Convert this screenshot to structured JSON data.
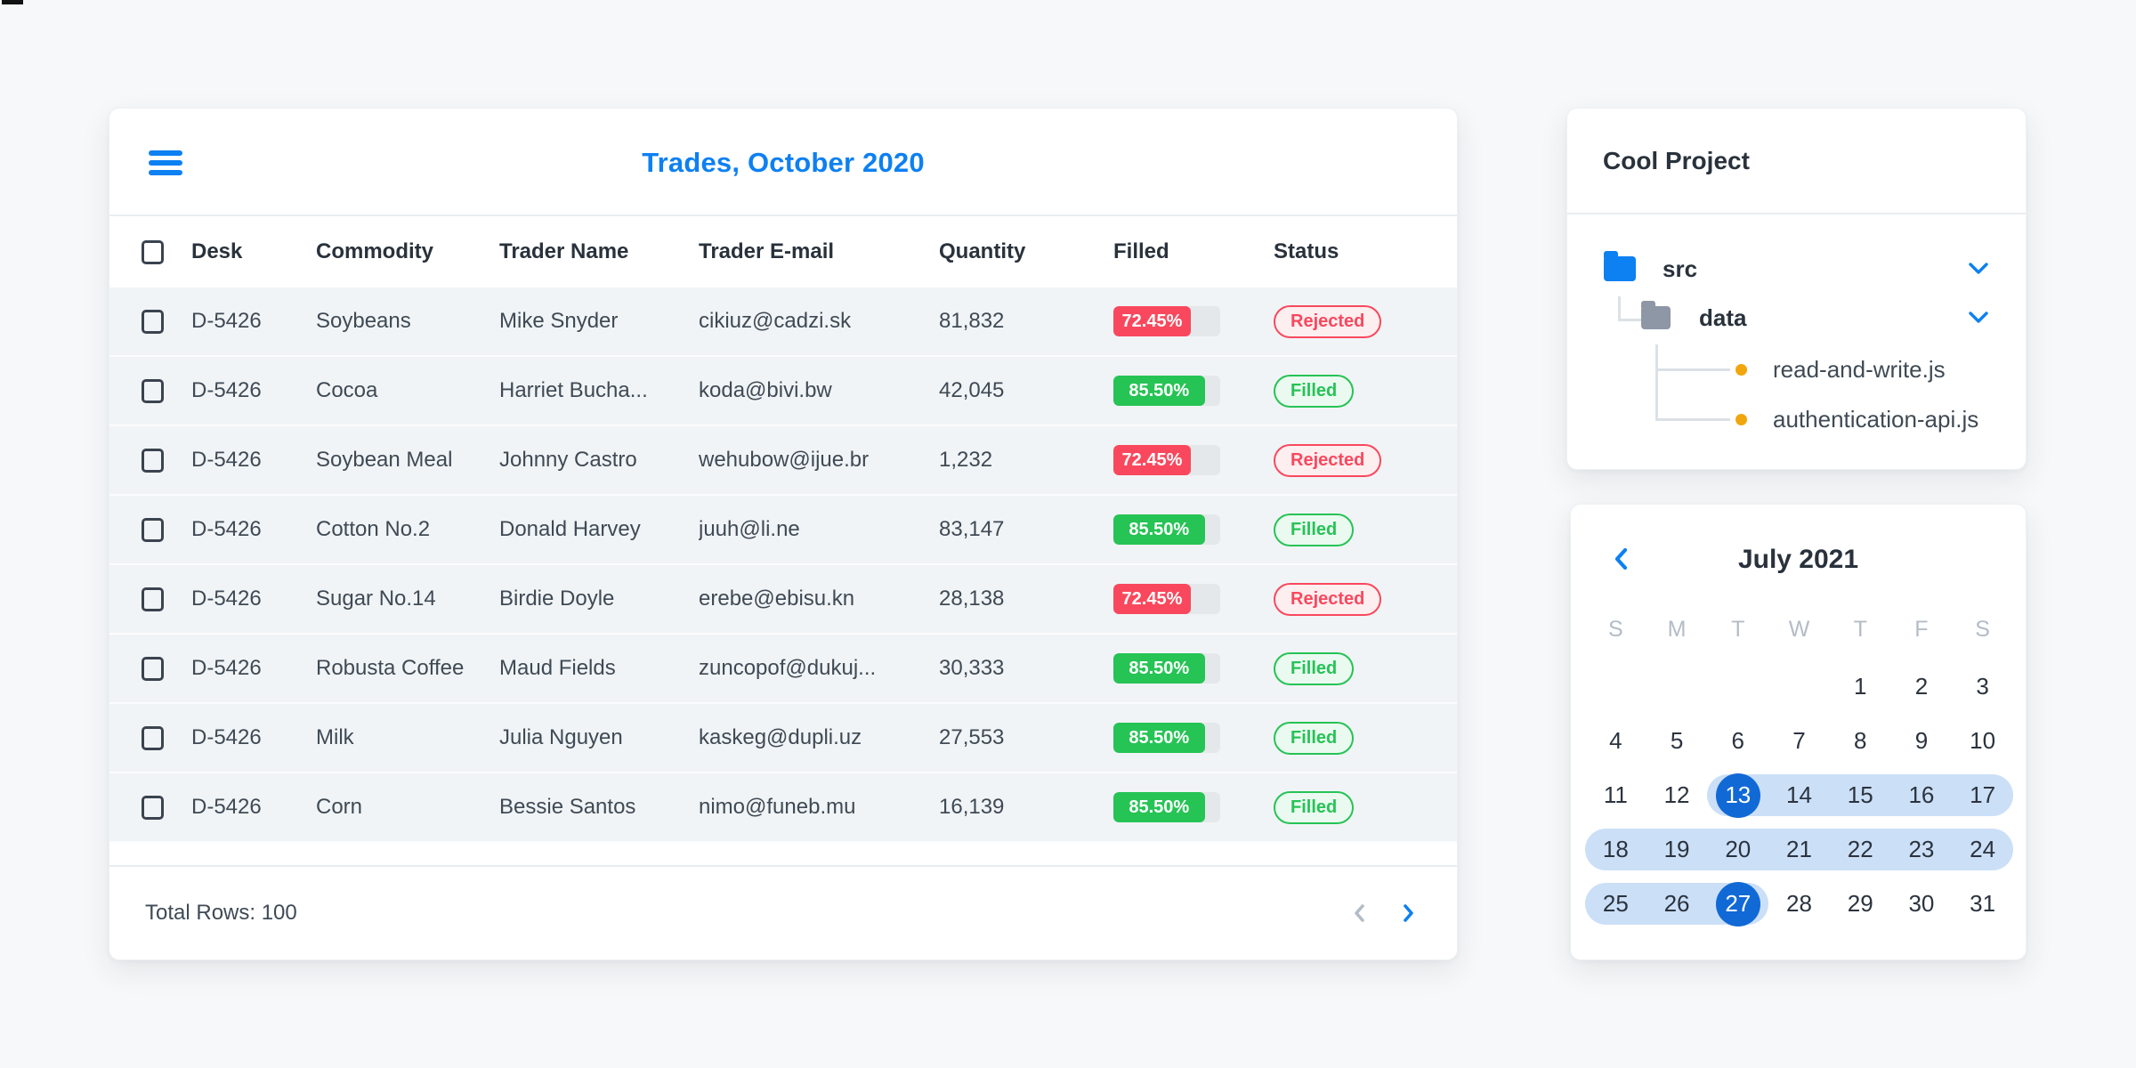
{
  "colors": {
    "accent_blue": "#0d80f2",
    "calendar_selected_blue": "#1169d6",
    "calendar_range_blue": "#cbdff7",
    "bar_red": "#f9485d",
    "bar_green": "#26c355",
    "badge_red_bg": "#fdeef0",
    "badge_green_bg": "#eafaf0",
    "bar_track": "#e4e8eb",
    "row_bg": "#f1f4f6",
    "divider": "#e9edf0",
    "text_dark": "#29323c",
    "text_body": "#3f4a55",
    "muted_grey": "#b4bcc6",
    "connector_grey": "#dce1e6",
    "folder_grey": "#8d97a5",
    "dot_orange": "#f2a60d",
    "page_bg": "#f6f8f9"
  },
  "trades_table": {
    "title": "Trades, October 2020",
    "columns": [
      "Desk",
      "Commodity",
      "Trader Name",
      "Trader E-mail",
      "Quantity",
      "Filled",
      "Status"
    ],
    "rows": [
      {
        "desk": "D-5426",
        "commodity": "Soybeans",
        "trader": "Mike Snyder",
        "email": "cikiuz@cadzi.sk",
        "quantity": "81,832",
        "filled_label": "72.45%",
        "filled_value": 72.45,
        "status": "Rejected"
      },
      {
        "desk": "D-5426",
        "commodity": "Cocoa",
        "trader": "Harriet Bucha...",
        "email": "koda@bivi.bw",
        "quantity": "42,045",
        "filled_label": "85.50%",
        "filled_value": 85.5,
        "status": "Filled"
      },
      {
        "desk": "D-5426",
        "commodity": "Soybean Meal",
        "trader": "Johnny Castro",
        "email": "wehubow@ijue.br",
        "quantity": "1,232",
        "filled_label": "72.45%",
        "filled_value": 72.45,
        "status": "Rejected"
      },
      {
        "desk": "D-5426",
        "commodity": "Cotton No.2",
        "trader": "Donald Harvey",
        "email": "juuh@li.ne",
        "quantity": "83,147",
        "filled_label": "85.50%",
        "filled_value": 85.5,
        "status": "Filled"
      },
      {
        "desk": "D-5426",
        "commodity": "Sugar No.14",
        "trader": "Birdie Doyle",
        "email": "erebe@ebisu.kn",
        "quantity": "28,138",
        "filled_label": "72.45%",
        "filled_value": 72.45,
        "status": "Rejected"
      },
      {
        "desk": "D-5426",
        "commodity": "Robusta Coffee",
        "trader": "Maud Fields",
        "email": "zuncopof@dukuj...",
        "quantity": "30,333",
        "filled_label": "85.50%",
        "filled_value": 85.5,
        "status": "Filled"
      },
      {
        "desk": "D-5426",
        "commodity": "Milk",
        "trader": "Julia Nguyen",
        "email": "kaskeg@dupli.uz",
        "quantity": "27,553",
        "filled_label": "85.50%",
        "filled_value": 85.5,
        "status": "Filled"
      },
      {
        "desk": "D-5426",
        "commodity": "Corn",
        "trader": "Bessie Santos",
        "email": "nimo@funeb.mu",
        "quantity": "16,139",
        "filled_label": "85.50%",
        "filled_value": 85.5,
        "status": "Filled"
      }
    ],
    "footer": {
      "total_label": "Total Rows: 100"
    }
  },
  "file_tree": {
    "title": "Cool Project",
    "folders": [
      {
        "label": "src",
        "color": "blue",
        "expanded": true
      },
      {
        "label": "data",
        "color": "grey",
        "expanded": true
      }
    ],
    "files": [
      {
        "label": "read-and-write.js"
      },
      {
        "label": "authentication-api.js"
      }
    ]
  },
  "calendar": {
    "month_label": "July 2021",
    "weekdays": [
      "S",
      "M",
      "T",
      "W",
      "T",
      "F",
      "S"
    ],
    "weeks": [
      [
        null,
        null,
        null,
        null,
        1,
        2,
        3
      ],
      [
        4,
        5,
        6,
        7,
        8,
        9,
        10
      ],
      [
        11,
        12,
        13,
        14,
        15,
        16,
        17
      ],
      [
        18,
        19,
        20,
        21,
        22,
        23,
        24
      ],
      [
        25,
        26,
        27,
        28,
        29,
        30,
        31
      ]
    ],
    "range_start": 13,
    "range_end": 27,
    "selected_days": [
      13,
      27
    ]
  }
}
